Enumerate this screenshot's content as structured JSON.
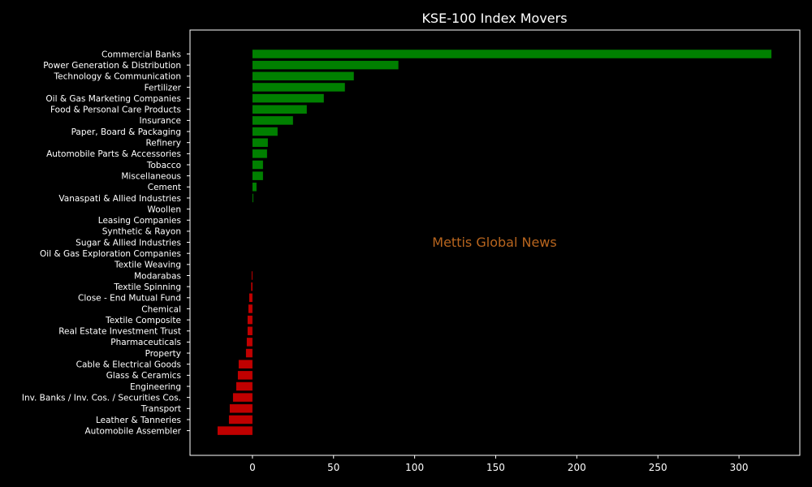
{
  "chart_data": {
    "type": "bar",
    "orientation": "horizontal",
    "title": "KSE-100 Index Movers",
    "xlabel": "",
    "ylabel": "",
    "xlim": [
      -38.5,
      337.5
    ],
    "xticks": [
      0,
      50,
      100,
      150,
      200,
      250,
      300
    ],
    "grid": false,
    "categories": [
      "Commercial Banks",
      "Power Generation & Distribution",
      "Technology & Communication",
      "Fertilizer",
      "Oil & Gas Marketing Companies",
      "Food & Personal Care Products",
      "Insurance",
      "Paper, Board & Packaging",
      "Refinery",
      "Automobile Parts & Accessories",
      "Tobacco",
      "Miscellaneous",
      "Cement",
      "Vanaspati & Allied Industries",
      "Woollen",
      "Leasing Companies",
      "Synthetic & Rayon",
      "Sugar & Allied Industries",
      "Oil & Gas Exploration Companies",
      "Textile Weaving",
      "Modarabas",
      "Textile Spinning",
      "Close - End Mutual Fund",
      "Chemical",
      "Textile Composite",
      "Real Estate Investment Trust",
      "Pharmaceuticals",
      "Property",
      "Cable & Electrical Goods",
      "Glass & Ceramics",
      "Engineering",
      "Inv. Banks / Inv. Cos. / Securities Cos.",
      "Transport",
      "Leather & Tanneries",
      "Automobile Assembler"
    ],
    "values": [
      320,
      90,
      62.5,
      57,
      44,
      33.5,
      25,
      15.5,
      9.5,
      9,
      6.5,
      6.5,
      2.5,
      0.5,
      0,
      0,
      0,
      0,
      0,
      0,
      -0.5,
      -0.8,
      -2,
      -2.5,
      -3,
      -3,
      -3.5,
      -4,
      -8.5,
      -9,
      -10,
      -12,
      -14,
      -14.5,
      -21.5
    ],
    "colors": {
      "positive": "#008000",
      "negative": "#c00000"
    },
    "watermark": "Mettis Global News",
    "watermark_color": "#b8651e",
    "background": "#000000",
    "axis_color": "#ffffff"
  }
}
